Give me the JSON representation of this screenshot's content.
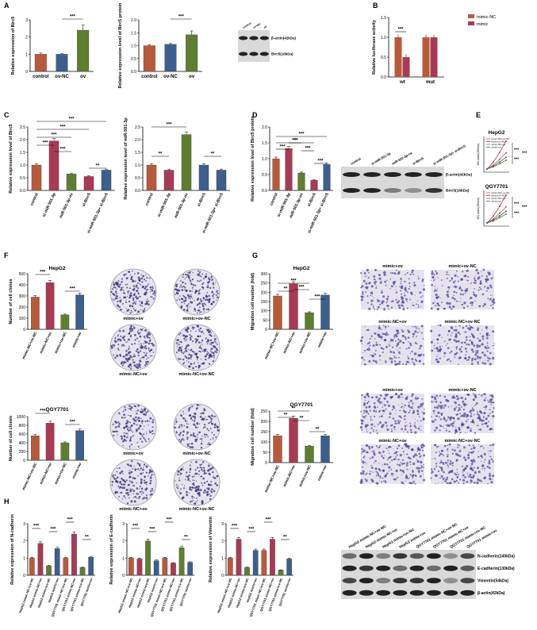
{
  "colors": {
    "control": "#b85a3a",
    "red": "#a83a55",
    "green": "#5e7d2f",
    "blue": "#3d5f8e",
    "blot_bg": "#d9d9d9",
    "band": "#222"
  },
  "panels": {
    "A": "A",
    "B": "B",
    "C": "C",
    "D": "D",
    "E": "E",
    "F": "F",
    "G": "G",
    "H": "H"
  },
  "panelA": {
    "chart1": {
      "ylabel": "Relative expression of Birc5",
      "cats": [
        "control",
        "ov-NC",
        "ov"
      ],
      "values": [
        1.0,
        1.0,
        2.4
      ],
      "errs": [
        0.07,
        0.03,
        0.3
      ],
      "ylim": [
        0,
        3
      ],
      "ticks": [
        "0",
        "1",
        "2",
        "3"
      ],
      "sig": "***"
    },
    "chart2": {
      "ylabel": "Relative expression level of Birc5 protein",
      "cats": [
        "control",
        "ov-NC",
        "ov"
      ],
      "values": [
        1.0,
        1.05,
        1.42
      ],
      "errs": [
        0.03,
        0.03,
        0.15
      ],
      "ylim": [
        0,
        2
      ],
      "ticks": [
        "0.0",
        "0.5",
        "1.0",
        "1.5",
        "2.0"
      ],
      "sig": "***"
    },
    "blot": {
      "lanes": [
        "control",
        "ov-NC",
        "ov"
      ],
      "bands": [
        "β-actin(42kDa)",
        "Birc5(16kDa)"
      ]
    }
  },
  "panelB": {
    "ylabel": "Relative luciferase activity",
    "groups": [
      "wt",
      "mut"
    ],
    "legend": [
      "mimic-NC",
      "mimic"
    ],
    "values": [
      [
        1.0,
        1.0
      ],
      [
        0.5,
        1.0
      ]
    ],
    "ticks": [
      "0.0",
      "0.5",
      "1.0",
      "1.5"
    ],
    "sig": "***"
  },
  "panelC": {
    "chart1": {
      "ylabel": "Relative expression level of Birc5",
      "cats": [
        "control",
        "si-miR-501-3p",
        "miR-501-3p-ov",
        "si-Birc5",
        "si-miR-501-3p+ si-Birc5"
      ],
      "values": [
        1.0,
        1.95,
        0.65,
        0.55,
        0.8
      ],
      "ticks": [
        "0.0",
        "0.5",
        "1.0",
        "1.5",
        "2.0",
        "2.5"
      ],
      "sigs": [
        "***",
        "***",
        "***",
        "***",
        "***",
        "**"
      ]
    },
    "chart2": {
      "ylabel": "Relative expression level of miR-501-3p",
      "cats": [
        "control",
        "si-miR-501-3p",
        "miR-501-3p-ov",
        "si-Birc5",
        "si-miR-501-3p+ si-Birc5"
      ],
      "values": [
        1.0,
        0.8,
        2.2,
        1.0,
        0.8
      ],
      "ticks": [
        "0.0",
        "0.5",
        "1.0",
        "1.5",
        "2.0",
        "2.5"
      ],
      "sigs": [
        "***",
        "**",
        "**"
      ]
    }
  },
  "panelD": {
    "ylabel": "Relative expression level of Birc5 protein",
    "cats": [
      "control",
      "si-miR-501-3p",
      "miR-501-3p-ov",
      "si-Birc5",
      "si-miR-501-3p+ si-Birc5"
    ],
    "values": [
      1.0,
      1.32,
      0.55,
      0.32,
      0.82
    ],
    "ticks": [
      "0.0",
      "0.5",
      "1.0",
      "1.5",
      "2.0"
    ],
    "sigs": [
      "***",
      "***",
      "***",
      "***",
      "***",
      "***"
    ],
    "blot": {
      "lanes": [
        "control",
        "si-miR-501-3p",
        "miR-501-3p-ov",
        "si-Birc5",
        "si-miR-501-3p+ si-Birc5"
      ],
      "bands": [
        "β-actin(42kDa)",
        "Birc5(16kDa)"
      ]
    }
  },
  "panelE": {
    "cell1": "HepG2",
    "cell2": "QGY7701",
    "ylabel": "OD value(450nm)",
    "legend": [
      "mimic-NC+ov-NC",
      "mimic+ov-NC",
      "mimic-NC+ov",
      "mimic+ov"
    ],
    "sig": "***"
  },
  "panelF": {
    "cell1": "HepG2",
    "cell2": "QGY7701",
    "ylabel": "Number of cell clones",
    "cats": [
      "mimic-NC+ov-NC",
      "mimic-NC+ov",
      "mimic+ov-NC",
      "mimic+ov"
    ],
    "values1": [
      290,
      420,
      130,
      310
    ],
    "values2": [
      560,
      850,
      400,
      680
    ],
    "ticks1": [
      "0",
      "100",
      "200",
      "300",
      "400",
      "500"
    ],
    "ticks2": [
      "0",
      "200",
      "400",
      "600",
      "800",
      "1000"
    ],
    "img_labels": [
      "mimic+ov",
      "mimic+ov-NC",
      "mimic-NC+ov",
      "mimic-NC+ov-NC"
    ],
    "sigs": [
      "***",
      "***"
    ]
  },
  "panelG": {
    "cell1": "HepG2",
    "cell2": "QGY7701",
    "ylabel": "Migration cell number (fold)",
    "cats": [
      "mimic-NC+ov-NC",
      "mimic-NC+ov",
      "mimic+ov-NC",
      "mimic+ov"
    ],
    "values1": [
      180,
      245,
      90,
      185
    ],
    "values2": [
      130,
      215,
      80,
      130
    ],
    "ticks1": [
      "0",
      "50",
      "100",
      "150",
      "200",
      "250",
      "300"
    ],
    "ticks2": [
      "0",
      "50",
      "100",
      "150",
      "200",
      "250"
    ],
    "img_labels": [
      "mimic+ov",
      "mimic+ov-NC",
      "mimic-NC+ov",
      "mimic-NC+ov-NC"
    ],
    "sigs1": [
      "***",
      "**",
      "***",
      "***"
    ],
    "sigs2": [
      "**",
      "**",
      "**",
      "**"
    ]
  },
  "panelH": {
    "ylabels": [
      "Relative expression of N-cadherin",
      "Relative expression of E-cadherin",
      "Relative expression of Vimentin"
    ],
    "cats": [
      "HepG2 mimic-NC+ov-NC",
      "HepG2 mimic-NC+ov",
      "HepG2 mimic+ov-NC",
      "HepG2 mimic+ov",
      "QGY7701 mimic-NC+ov-NC",
      "QGY7701 mimic-NC+ov",
      "QGY7701 mimic+ov-NC",
      "QGY7701 mimic+ov"
    ],
    "values": [
      [
        1.0,
        1.85,
        0.55,
        1.55,
        1.0,
        2.4,
        0.45,
        1.05
      ],
      [
        1.0,
        0.95,
        2.0,
        0.85,
        1.0,
        0.7,
        1.6,
        0.75
      ],
      [
        1.0,
        2.1,
        0.45,
        1.45,
        1.45,
        2.1,
        0.3,
        0.95
      ]
    ],
    "ticks": [
      "0",
      "1",
      "2",
      "3"
    ],
    "blot": {
      "lanes": [
        "HepG2 mimic-NC+ov-NC",
        "HepG2 mimic-NC+ov",
        "HepG2 mimic+ov-NC",
        "HepG2 mimic+ov",
        "QGY7701 mimic-NC+ov-NC",
        "QGY7701 mimic-NC+ov",
        "QGY7701 mimic+ov-NC",
        "QGY7701 mimic+ov"
      ],
      "bands": [
        "N-cadherin(140kDa)",
        "E-cadherin(130kDa)",
        "Vimentin(54kDa)",
        "β-actin(42kDa)"
      ]
    }
  }
}
